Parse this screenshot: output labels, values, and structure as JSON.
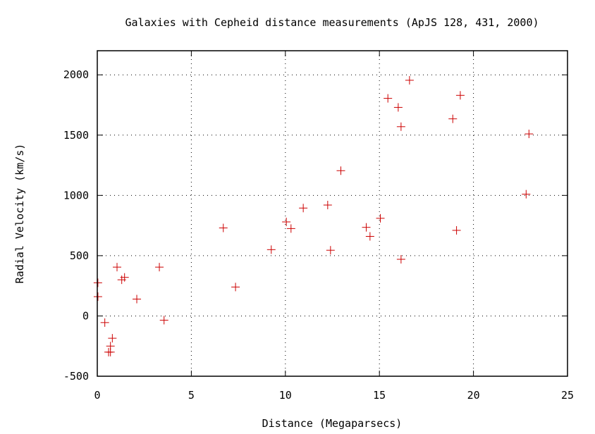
{
  "chart_data": {
    "type": "scatter",
    "title": "Galaxies with Cepheid distance measurements (ApJS 128, 431, 2000)",
    "xlabel": "Distance (Megaparsecs)",
    "ylabel": "Radial Velocity (km/s)",
    "xlim": [
      0,
      25
    ],
    "ylim": [
      -500,
      2200
    ],
    "xticks": [
      0,
      5,
      10,
      15,
      20,
      25
    ],
    "yticks": [
      -500,
      0,
      500,
      1000,
      1500,
      2000
    ],
    "grid": true,
    "marker": "plus",
    "marker_color": "#cc0000",
    "series": [
      {
        "points": [
          [
            0.032,
            275
          ],
          [
            0.034,
            160
          ],
          [
            0.4,
            -55
          ],
          [
            0.6,
            -300
          ],
          [
            0.7,
            -300
          ],
          [
            0.7,
            -250
          ],
          [
            0.8,
            -185
          ],
          [
            1.05,
            405
          ],
          [
            1.3,
            300
          ],
          [
            1.45,
            320
          ],
          [
            2.1,
            140
          ],
          [
            3.3,
            405
          ],
          [
            3.55,
            -35
          ],
          [
            6.7,
            730
          ],
          [
            7.35,
            240
          ],
          [
            9.25,
            550
          ],
          [
            10.05,
            780
          ],
          [
            10.3,
            725
          ],
          [
            10.95,
            895
          ],
          [
            12.25,
            920
          ],
          [
            12.4,
            545
          ],
          [
            12.95,
            1205
          ],
          [
            14.3,
            735
          ],
          [
            14.5,
            660
          ],
          [
            15.05,
            810
          ],
          [
            15.45,
            1805
          ],
          [
            16.0,
            1730
          ],
          [
            16.15,
            1570
          ],
          [
            16.15,
            470
          ],
          [
            16.6,
            1955
          ],
          [
            18.9,
            1635
          ],
          [
            19.1,
            710
          ],
          [
            19.3,
            1830
          ],
          [
            22.8,
            1010
          ],
          [
            22.95,
            1510
          ]
        ]
      }
    ]
  }
}
